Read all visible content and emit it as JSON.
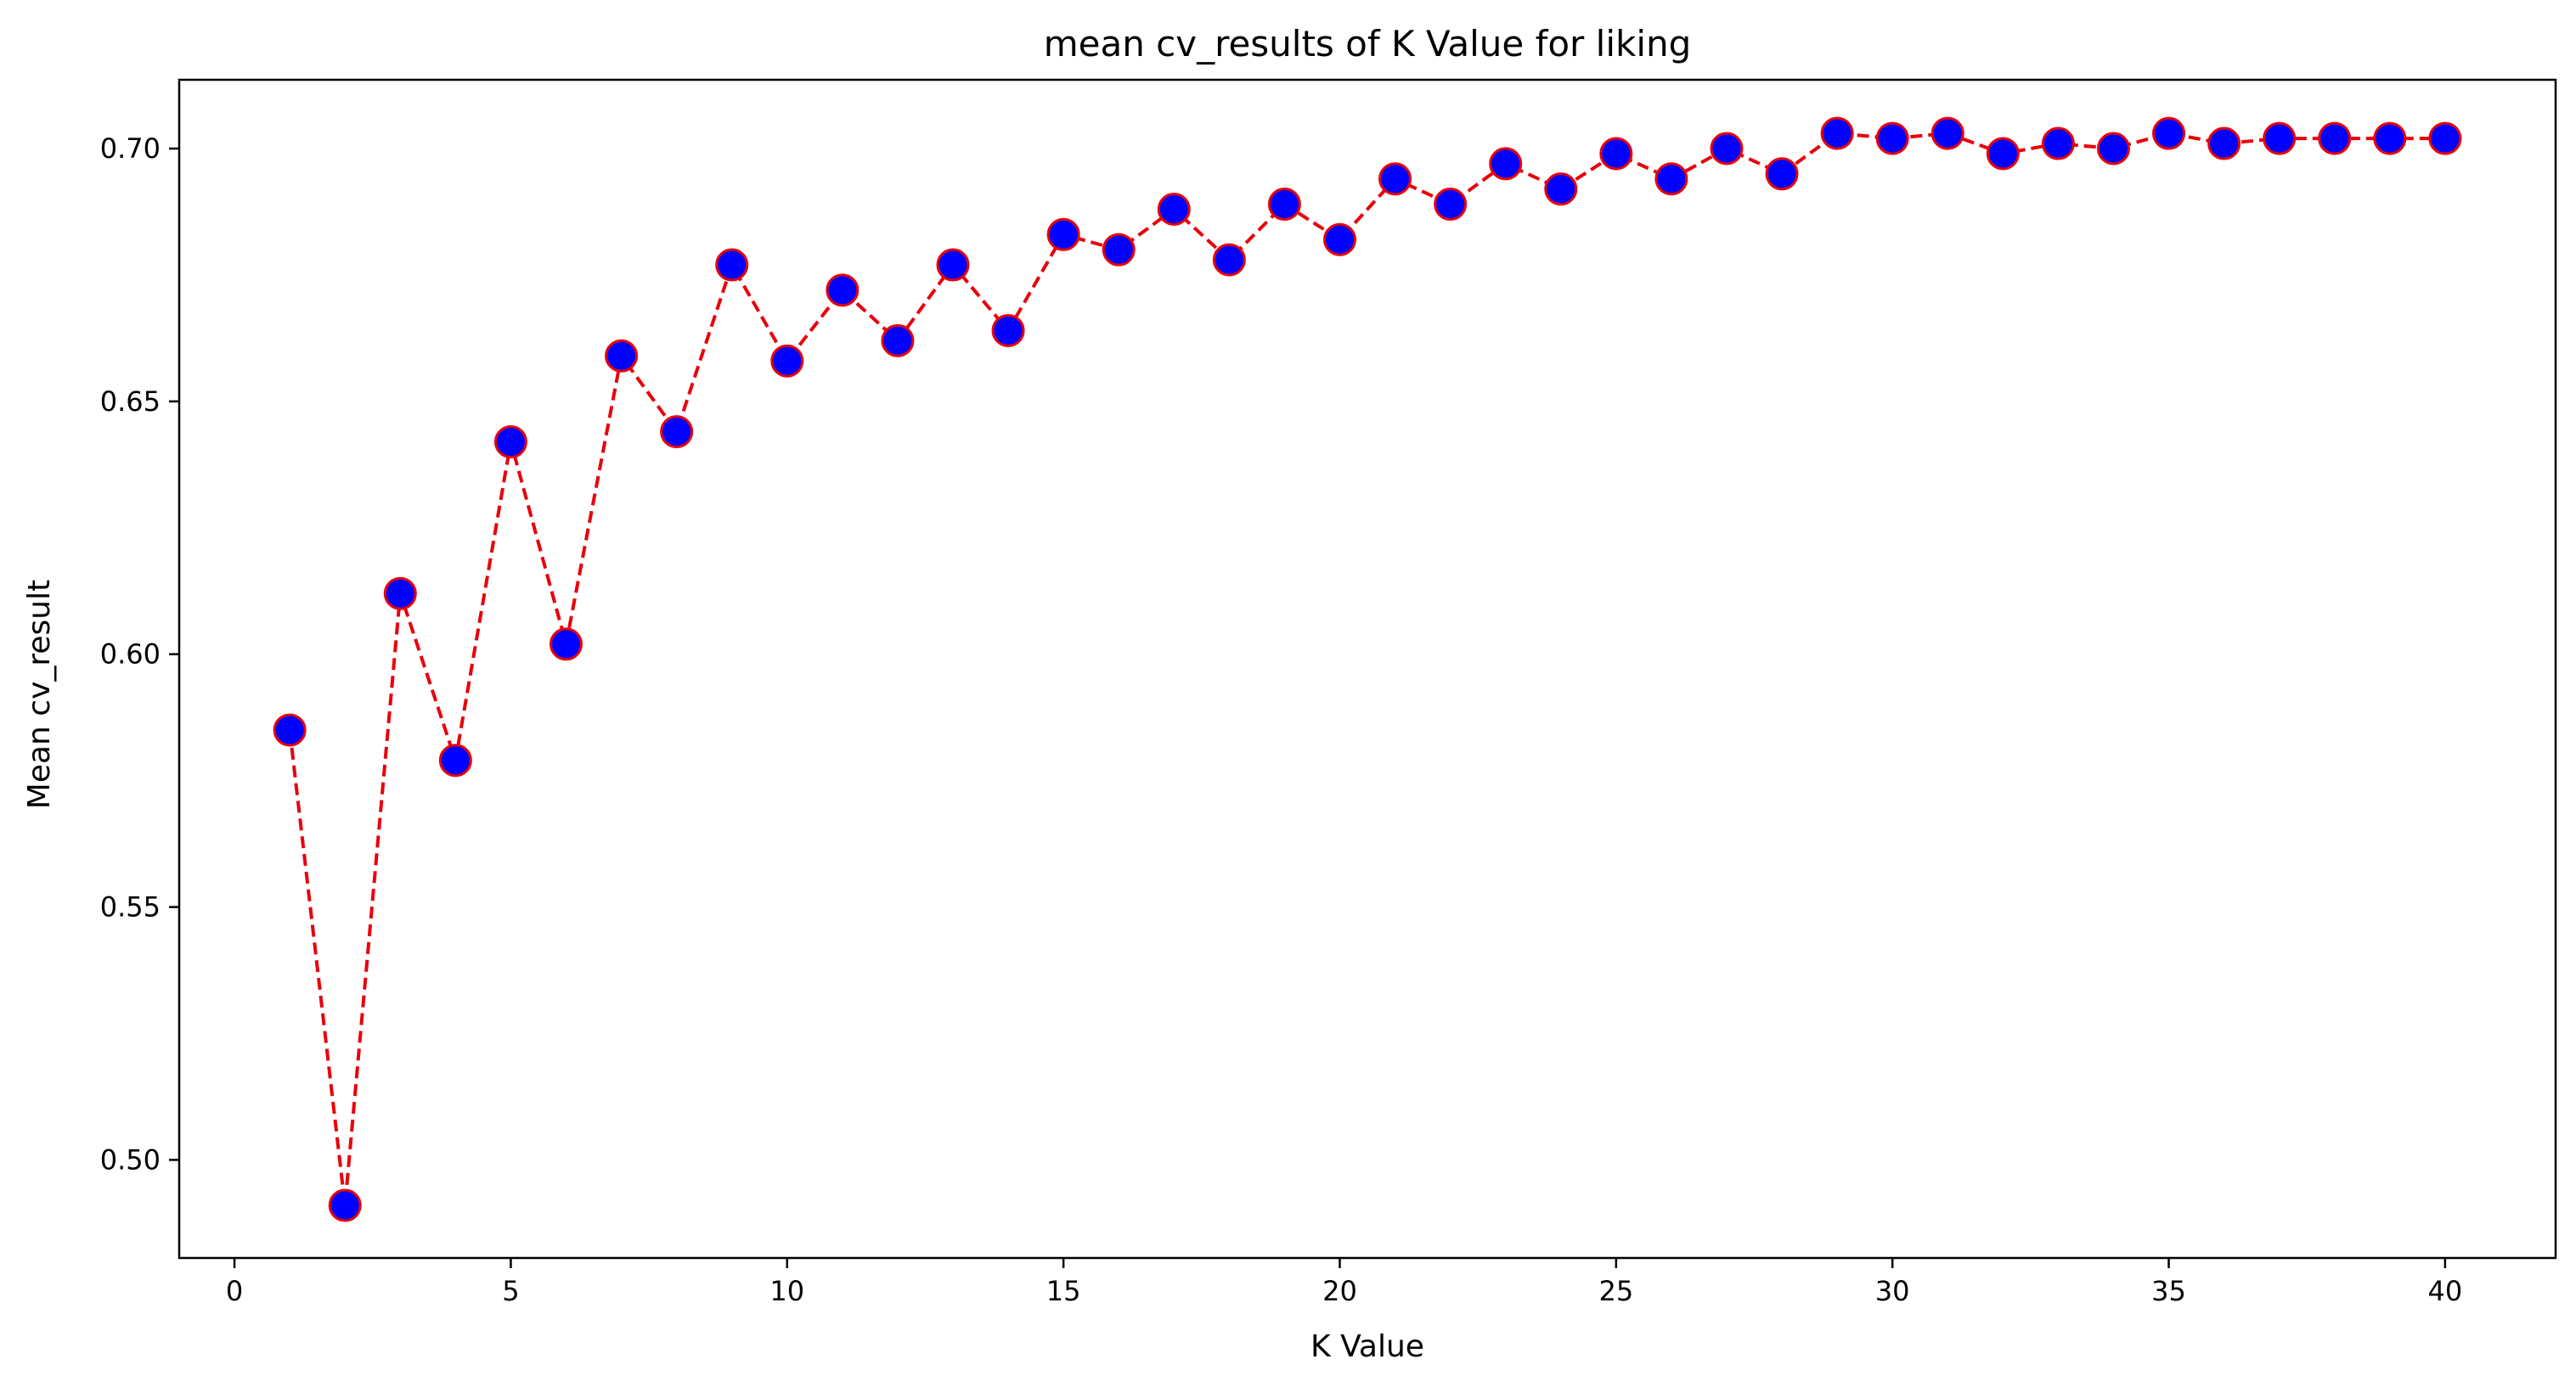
{
  "chart_data": {
    "type": "line",
    "title": "mean cv_results of  K Value for liking",
    "xlabel": "K Value",
    "ylabel": "Mean cv_result",
    "xlim": [
      -1,
      42
    ],
    "ylim": [
      0.4806,
      0.7136
    ],
    "xticks": [
      0,
      5,
      10,
      15,
      20,
      25,
      30,
      35,
      40
    ],
    "xtick_labels": [
      "0",
      "5",
      "10",
      "15",
      "20",
      "25",
      "30",
      "35",
      "40"
    ],
    "yticks": [
      0.5,
      0.55,
      0.6,
      0.65,
      0.7
    ],
    "ytick_labels": [
      "0.50",
      "0.55",
      "0.60",
      "0.65",
      "0.70"
    ],
    "grid": false,
    "line_color": "#e8000b",
    "line_style": "dashed",
    "marker": "circle",
    "marker_face_color": "#0000ff",
    "marker_edge_color": "#e8000b",
    "series": [
      {
        "x": [
          1,
          2,
          3,
          4,
          5,
          6,
          7,
          8,
          9,
          10,
          11,
          12,
          13,
          14,
          15,
          16,
          17,
          18,
          19,
          20,
          21,
          22,
          23,
          24,
          25,
          26,
          27,
          28,
          29,
          30,
          31,
          32,
          33,
          34,
          35,
          36,
          37,
          38,
          39,
          40
        ],
        "values": [
          0.585,
          0.491,
          0.612,
          0.579,
          0.642,
          0.602,
          0.659,
          0.644,
          0.677,
          0.658,
          0.672,
          0.662,
          0.677,
          0.664,
          0.683,
          0.68,
          0.688,
          0.678,
          0.689,
          0.682,
          0.694,
          0.689,
          0.697,
          0.692,
          0.699,
          0.694,
          0.7,
          0.695,
          0.703,
          0.702,
          0.703,
          0.699,
          0.701,
          0.7,
          0.703,
          0.701,
          0.702,
          0.702,
          0.702,
          0.702
        ]
      }
    ]
  }
}
